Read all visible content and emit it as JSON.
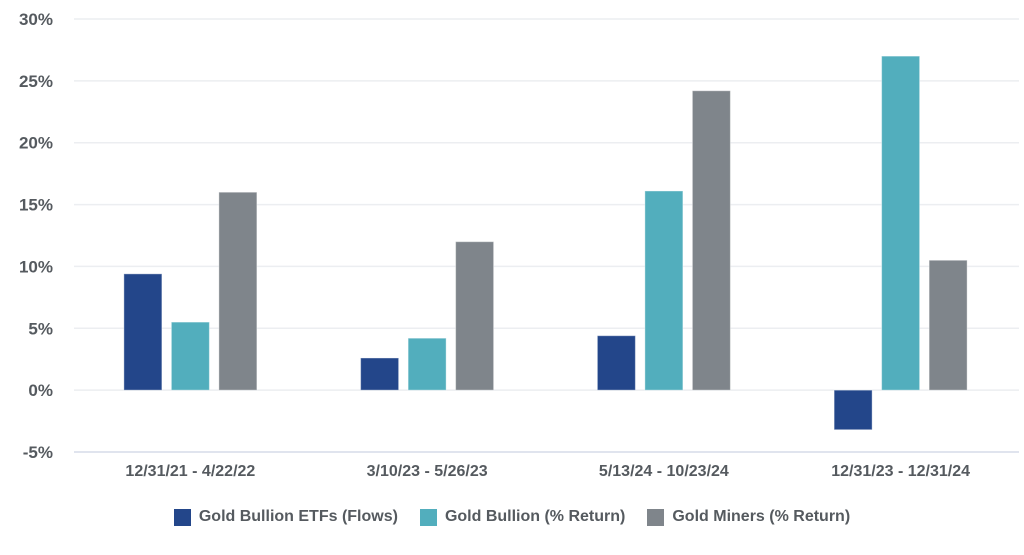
{
  "chart_data": {
    "type": "bar",
    "title": "",
    "xlabel": "",
    "ylabel": "",
    "categories": [
      "12/31/21 - 4/22/22",
      "3/10/23 - 5/26/23",
      "5/13/24 - 10/23/24",
      "12/31/23 - 12/31/24"
    ],
    "series": [
      {
        "name": "Gold Bullion ETFs (Flows)",
        "color": "#23468a",
        "values": [
          9.4,
          2.6,
          4.4,
          -3.2
        ]
      },
      {
        "name": "Gold Bullion (% Return)",
        "color": "#52aebd",
        "values": [
          5.5,
          4.2,
          16.1,
          27.0
        ]
      },
      {
        "name": "Gold Miners (% Return)",
        "color": "#7f858b",
        "values": [
          16.0,
          12.0,
          24.2,
          10.5
        ]
      }
    ],
    "ylim": [
      -5,
      30
    ],
    "yticks": [
      "-5%",
      "0%",
      "5%",
      "10%",
      "15%",
      "20%",
      "25%",
      "30%"
    ],
    "grid": true,
    "legend_position": "bottom"
  }
}
